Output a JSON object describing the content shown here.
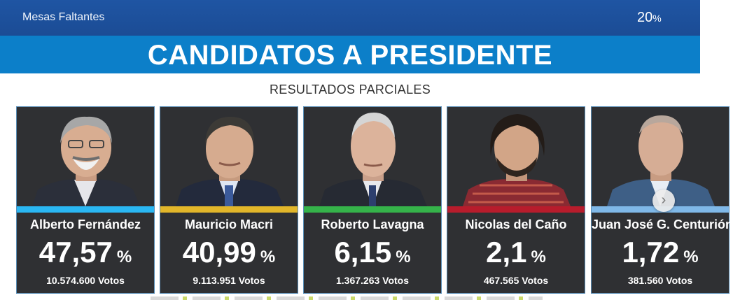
{
  "header": {
    "mesas_label": "Mesas Faltantes",
    "mesas_value": "20",
    "mesas_pct_sign": "%"
  },
  "title": "CANDIDATOS A PRESIDENTE",
  "subtitle": "RESULTADOS PARCIALES",
  "candidates": [
    {
      "name": "Alberto Fernández",
      "pct": "47,57",
      "pct_sign": "%",
      "votes": "10.574.600 Votos",
      "color": "#2ab7f3",
      "photo": "alberto-fernandez-photo"
    },
    {
      "name": "Mauricio Macri",
      "pct": "40,99",
      "pct_sign": "%",
      "votes": "9.113.951 Votos",
      "color": "#e2b62a",
      "photo": "mauricio-macri-photo"
    },
    {
      "name": "Roberto Lavagna",
      "pct": "6,15",
      "pct_sign": "%",
      "votes": "1.367.263 Votos",
      "color": "#35b34a",
      "photo": "roberto-lavagna-photo"
    },
    {
      "name": "Nicolas del Caño",
      "pct": "2,1",
      "pct_sign": "%",
      "votes": "467.565 Votos",
      "color": "#b81c2c",
      "photo": "nicolas-del-cano-photo"
    },
    {
      "name": "Juan José G. Centurión",
      "pct": "1,72",
      "pct_sign": "%",
      "votes": "381.560 Votos",
      "color": "#7fb8e8",
      "photo": "juan-jose-gomez-centurion-photo"
    }
  ],
  "carousel": {
    "next_icon": "chevron-right-icon"
  }
}
